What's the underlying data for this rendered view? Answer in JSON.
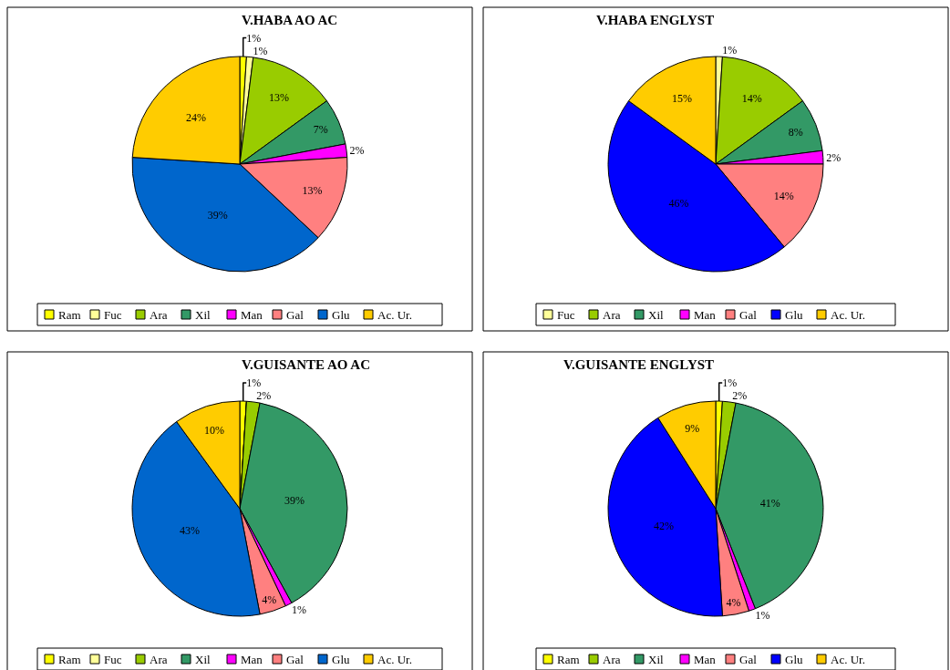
{
  "chart_data": [
    {
      "type": "pie",
      "title": "V.HABA AO AC",
      "categories": [
        "Ram",
        "Fuc",
        "Ara",
        "Xil",
        "Man",
        "Gal",
        "Glu",
        "Ac. Ur."
      ],
      "values": [
        1,
        1,
        13,
        7,
        2,
        13,
        39,
        24
      ],
      "colors": [
        "#ffff00",
        "#ffff99",
        "#99cc00",
        "#339966",
        "#ff00ff",
        "#ff8080",
        "#0066cc",
        "#ffcc00"
      ],
      "value_labels": [
        "1%",
        "1%",
        "13%",
        "7%",
        "2%",
        "13%",
        "39%",
        "24%"
      ],
      "legend": "bottom"
    },
    {
      "type": "pie",
      "title": "V.HABA ENGLYST",
      "categories": [
        "Fuc",
        "Ara",
        "Xil",
        "Man",
        "Gal",
        "Glu",
        "Ac. Ur."
      ],
      "values": [
        1,
        14,
        8,
        2,
        14,
        46,
        15
      ],
      "colors": [
        "#ffff99",
        "#99cc00",
        "#339966",
        "#ff00ff",
        "#ff8080",
        "#0000ff",
        "#ffcc00"
      ],
      "value_labels": [
        "1%",
        "14%",
        "8%",
        "2%",
        "14%",
        "46%",
        "15%"
      ],
      "legend": "bottom"
    },
    {
      "type": "pie",
      "title": "V.GUISANTE AO AC",
      "categories": [
        "Ram",
        "Fuc",
        "Ara",
        "Xil",
        "Man",
        "Gal",
        "Glu",
        "Ac. Ur."
      ],
      "values": [
        1,
        0,
        2,
        39,
        1,
        4,
        43,
        10
      ],
      "colors": [
        "#ffff00",
        "#ffff99",
        "#99cc00",
        "#339966",
        "#ff00ff",
        "#ff8080",
        "#0066cc",
        "#ffcc00"
      ],
      "value_labels": [
        "1%",
        null,
        "2%",
        "39%",
        "1%",
        "4%",
        "43%",
        "10%"
      ],
      "legend": "bottom"
    },
    {
      "type": "pie",
      "title": "V.GUISANTE ENGLYST",
      "categories": [
        "Ram",
        "Ara",
        "Xil",
        "Man",
        "Gal",
        "Glu",
        "Ac. Ur."
      ],
      "values": [
        1,
        2,
        41,
        1,
        4,
        42,
        9
      ],
      "colors": [
        "#ffff00",
        "#99cc00",
        "#339966",
        "#ff00ff",
        "#ff8080",
        "#0000ff",
        "#ffcc00"
      ],
      "value_labels": [
        "1%",
        "2%",
        "41%",
        "1%",
        "4%",
        "42%",
        "9%"
      ],
      "legend": "bottom"
    }
  ]
}
